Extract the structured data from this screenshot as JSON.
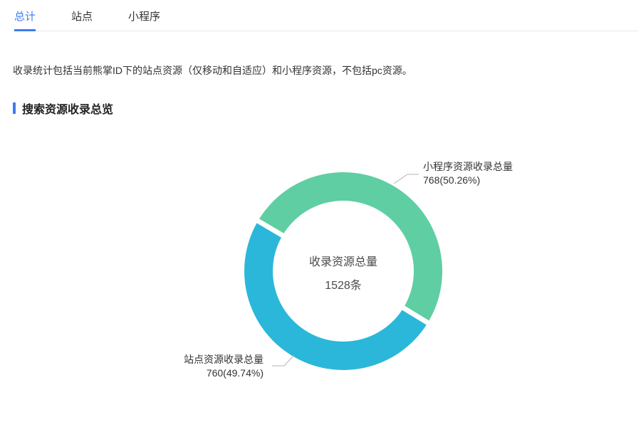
{
  "tabs": [
    {
      "label": "总计",
      "active": true
    },
    {
      "label": "站点",
      "active": false
    },
    {
      "label": "小程序",
      "active": false
    }
  ],
  "description": "收录统计包括当前熊掌ID下的站点资源（仅移动和自适应）和小程序资源，不包括pc资源。",
  "section_title": "搜索资源收录总览",
  "chart_data": {
    "type": "pie",
    "title": "搜索资源收录总览",
    "center_label": "收录资源总量",
    "center_value": "1528条",
    "total": 1528,
    "series": [
      {
        "name": "小程序资源收录总量",
        "value": 768,
        "percent": "50.26%",
        "display": "768(50.26%)",
        "color": "#5fcea2"
      },
      {
        "name": "站点资源收录总量",
        "value": 760,
        "percent": "49.74%",
        "display": "760(49.74%)",
        "color": "#2bb7d9"
      }
    ],
    "legend_position": "none",
    "start_angle_deg": 149.5,
    "donut": true
  },
  "colors": {
    "accent_blue": "#3e7bf2",
    "divider": "#e8e8e8",
    "text_dark": "#333333",
    "leader_line": "#b3b3b3"
  }
}
